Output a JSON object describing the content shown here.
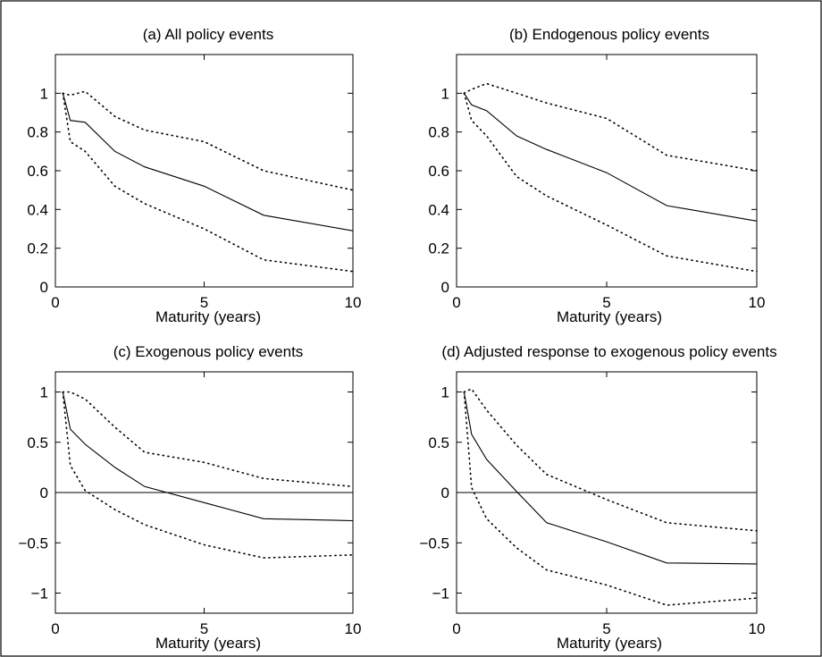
{
  "figure": {
    "panels": [
      {
        "title": "(a) All policy events",
        "xlabel": "Maturity (years)"
      },
      {
        "title": "(b) Endogenous policy events",
        "xlabel": "Maturity (years)"
      },
      {
        "title": "(c) Exogenous policy events",
        "xlabel": "Maturity (years)"
      },
      {
        "title": "(d) Adjusted response to exogenous policy events",
        "xlabel": "Maturity (years)"
      }
    ]
  },
  "chart_data": [
    {
      "type": "line",
      "title": "(a) All policy events",
      "xlabel": "Maturity (years)",
      "ylabel": "",
      "xlim": [
        0,
        10
      ],
      "ylim": [
        0,
        1.2
      ],
      "xticks": [
        0,
        5,
        10
      ],
      "yticks": [
        0,
        0.2,
        0.4,
        0.6,
        0.8,
        1
      ],
      "ytick_labels": [
        "0",
        "0.2",
        "0.4",
        "0.6",
        "0.8",
        "1"
      ],
      "zero_line": false,
      "x": [
        0.25,
        0.5,
        1,
        2,
        3,
        5,
        7,
        10
      ],
      "series": [
        {
          "role": "estimate",
          "style": "solid",
          "values": [
            1.0,
            0.86,
            0.85,
            0.7,
            0.62,
            0.52,
            0.37,
            0.29
          ]
        },
        {
          "role": "upper band",
          "style": "dotted",
          "values": [
            1.0,
            0.99,
            1.01,
            0.88,
            0.81,
            0.75,
            0.6,
            0.5
          ]
        },
        {
          "role": "lower band",
          "style": "dotted",
          "values": [
            1.0,
            0.75,
            0.7,
            0.52,
            0.43,
            0.3,
            0.14,
            0.08
          ]
        }
      ]
    },
    {
      "type": "line",
      "title": "(b) Endogenous policy events",
      "xlabel": "Maturity (years)",
      "ylabel": "",
      "xlim": [
        0,
        10
      ],
      "ylim": [
        0,
        1.2
      ],
      "xticks": [
        0,
        5,
        10
      ],
      "yticks": [
        0,
        0.2,
        0.4,
        0.6,
        0.8,
        1
      ],
      "ytick_labels": [
        "0",
        "0.2",
        "0.4",
        "0.6",
        "0.8",
        "1"
      ],
      "zero_line": false,
      "x": [
        0.25,
        0.5,
        1,
        2,
        3,
        5,
        7,
        10
      ],
      "series": [
        {
          "role": "estimate",
          "style": "solid",
          "values": [
            1.0,
            0.94,
            0.91,
            0.78,
            0.71,
            0.59,
            0.42,
            0.34
          ]
        },
        {
          "role": "upper band",
          "style": "dotted",
          "values": [
            1.0,
            1.02,
            1.05,
            1.0,
            0.95,
            0.87,
            0.68,
            0.6
          ]
        },
        {
          "role": "lower band",
          "style": "dotted",
          "values": [
            1.0,
            0.86,
            0.78,
            0.57,
            0.47,
            0.32,
            0.16,
            0.08
          ]
        }
      ]
    },
    {
      "type": "line",
      "title": "(c) Exogenous policy events",
      "xlabel": "Maturity (years)",
      "ylabel": "",
      "xlim": [
        0,
        10
      ],
      "ylim": [
        -1.2,
        1.2
      ],
      "xticks": [
        0,
        5,
        10
      ],
      "yticks": [
        -1,
        -0.5,
        0,
        0.5,
        1
      ],
      "ytick_labels": [
        "−1",
        "−0.5",
        "0",
        "0.5",
        "1"
      ],
      "zero_line": true,
      "x": [
        0.25,
        0.5,
        1,
        2,
        3,
        5,
        7,
        10
      ],
      "series": [
        {
          "role": "estimate",
          "style": "solid",
          "values": [
            1.0,
            0.63,
            0.48,
            0.25,
            0.06,
            -0.1,
            -0.26,
            -0.28
          ]
        },
        {
          "role": "upper band",
          "style": "dotted",
          "values": [
            1.0,
            1.0,
            0.93,
            0.65,
            0.4,
            0.3,
            0.14,
            0.06
          ]
        },
        {
          "role": "lower band",
          "style": "dotted",
          "values": [
            1.0,
            0.27,
            0.02,
            -0.17,
            -0.32,
            -0.52,
            -0.65,
            -0.62
          ]
        }
      ]
    },
    {
      "type": "line",
      "title": "(d) Adjusted response to exogenous policy events",
      "xlabel": "Maturity (years)",
      "ylabel": "",
      "xlim": [
        0,
        10
      ],
      "ylim": [
        -1.2,
        1.2
      ],
      "xticks": [
        0,
        5,
        10
      ],
      "yticks": [
        -1,
        -0.5,
        0,
        0.5,
        1
      ],
      "ytick_labels": [
        "−1",
        "−0.5",
        "0",
        "0.5",
        "1"
      ],
      "zero_line": true,
      "x": [
        0.25,
        0.5,
        1,
        2,
        3,
        5,
        7,
        10
      ],
      "series": [
        {
          "role": "estimate",
          "style": "solid",
          "values": [
            1.0,
            0.58,
            0.33,
            0.01,
            -0.3,
            -0.49,
            -0.7,
            -0.71
          ]
        },
        {
          "role": "upper band",
          "style": "dotted",
          "values": [
            1.0,
            1.03,
            0.82,
            0.47,
            0.18,
            -0.07,
            -0.3,
            -0.38
          ]
        },
        {
          "role": "lower band",
          "style": "dotted",
          "values": [
            1.0,
            0.05,
            -0.26,
            -0.55,
            -0.77,
            -0.92,
            -1.12,
            -1.05
          ]
        }
      ]
    }
  ]
}
